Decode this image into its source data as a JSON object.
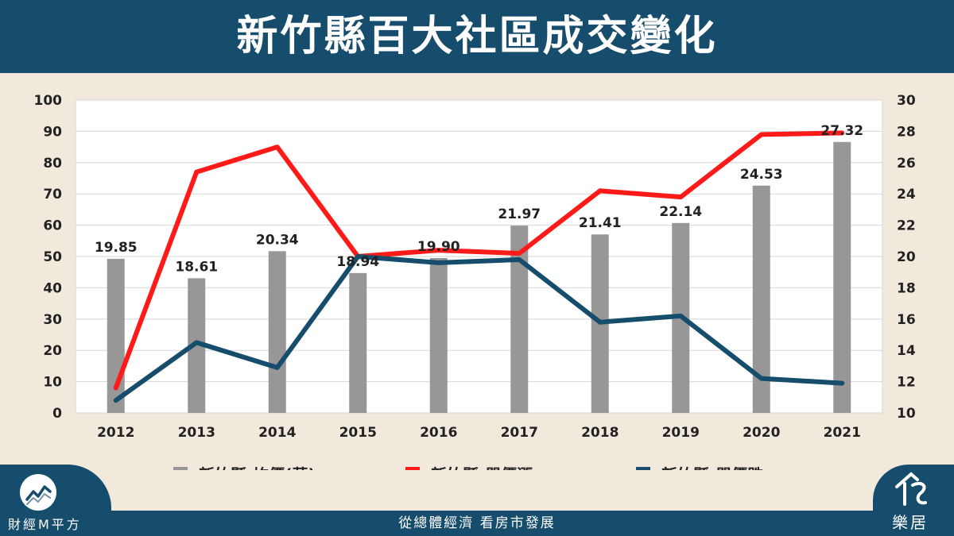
{
  "header": {
    "title": "新竹縣百大社區成交變化"
  },
  "footer": {
    "slogan": "從總體經濟  看房市發展",
    "brand_left": "財經M平方",
    "brand_right": "樂居",
    "brand_right_icon": "leju-house-logo-icon",
    "brand_left_icon": "trend-chart-logo-icon"
  },
  "colors": {
    "bar": "#979797",
    "rise": "#ff1a1a",
    "fall": "#174d6c",
    "header": "#174d6c",
    "background": "#f1e9dc"
  },
  "chart_data": {
    "type": "bar",
    "categories": [
      "2012",
      "2013",
      "2014",
      "2015",
      "2016",
      "2017",
      "2018",
      "2019",
      "2020",
      "2021"
    ],
    "left_axis": {
      "ylim": [
        0,
        100
      ],
      "ticks": [
        0,
        10,
        20,
        30,
        40,
        50,
        60,
        70,
        80,
        90,
        100
      ]
    },
    "right_axis": {
      "ylim": [
        10,
        30
      ],
      "ticks": [
        10,
        12,
        14,
        16,
        18,
        20,
        22,
        24,
        26,
        28,
        30
      ]
    },
    "grid": true,
    "legend_position": "bottom",
    "series": [
      {
        "name": "新竹縣-均價(萬)",
        "type": "bar",
        "axis": "right",
        "values": [
          19.85,
          18.61,
          20.34,
          18.94,
          19.9,
          21.97,
          21.41,
          22.14,
          24.53,
          27.32
        ],
        "labels": [
          "19.85",
          "18.61",
          "20.34",
          "18.94",
          "19.90",
          "21.97",
          "21.41",
          "22.14",
          "24.53",
          "27.32"
        ]
      },
      {
        "name": "新竹縣-單價漲",
        "type": "line",
        "axis": "left",
        "values": [
          8,
          77,
          85,
          50,
          52,
          51,
          71,
          69,
          89,
          89.5
        ]
      },
      {
        "name": "新竹縣-單價跌",
        "type": "line",
        "axis": "left",
        "values": [
          4,
          22.5,
          14.5,
          50,
          48,
          49,
          29,
          31,
          11,
          9.5
        ]
      }
    ]
  }
}
